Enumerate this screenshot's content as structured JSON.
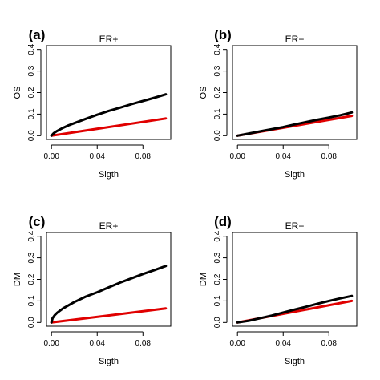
{
  "chart_data": [
    {
      "type": "line",
      "panel": "(a)",
      "title": "ER+",
      "xlabel": "Sigth",
      "ylabel": "OS",
      "xlim": [
        0,
        0.1
      ],
      "ylim": [
        0,
        0.4
      ],
      "xticks": [
        0.0,
        0.04,
        0.08
      ],
      "xtick_labels": [
        "0.00",
        "0.04",
        "0.08"
      ],
      "yticks": [
        0,
        0.1,
        0.2,
        0.3,
        0.4
      ],
      "ytick_labels": [
        "0.0",
        "0.1",
        "0.2",
        "0.3",
        "0.4"
      ],
      "series": [
        {
          "color": "#000000",
          "x": [
            0,
            0.002,
            0.005,
            0.01,
            0.015,
            0.02,
            0.03,
            0.04,
            0.05,
            0.06,
            0.07,
            0.08,
            0.09,
            0.1
          ],
          "y": [
            0,
            0.012,
            0.022,
            0.036,
            0.048,
            0.058,
            0.078,
            0.097,
            0.115,
            0.13,
            0.146,
            0.161,
            0.176,
            0.192
          ]
        },
        {
          "color": "#e00000",
          "x": [
            0,
            0.1
          ],
          "y": [
            0,
            0.08
          ]
        }
      ]
    },
    {
      "type": "line",
      "panel": "(b)",
      "title": "ER−",
      "xlabel": "Sigth",
      "ylabel": "OS",
      "xlim": [
        0,
        0.1
      ],
      "ylim": [
        0,
        0.4
      ],
      "xticks": [
        0.0,
        0.04,
        0.08
      ],
      "xtick_labels": [
        "0.00",
        "0.04",
        "0.08"
      ],
      "yticks": [
        0,
        0.1,
        0.2,
        0.3,
        0.4
      ],
      "ytick_labels": [
        "0.0",
        "0.1",
        "0.2",
        "0.3",
        "0.4"
      ],
      "series": [
        {
          "color": "#000000",
          "x": [
            0,
            0.01,
            0.02,
            0.03,
            0.04,
            0.05,
            0.06,
            0.07,
            0.08,
            0.09,
            0.1
          ],
          "y": [
            0,
            0.01,
            0.02,
            0.03,
            0.04,
            0.052,
            0.063,
            0.074,
            0.084,
            0.095,
            0.108
          ]
        },
        {
          "color": "#e00000",
          "x": [
            0,
            0.1
          ],
          "y": [
            0,
            0.092
          ]
        }
      ]
    },
    {
      "type": "line",
      "panel": "(c)",
      "title": "ER+",
      "xlabel": "Sigth",
      "ylabel": "DM",
      "xlim": [
        0,
        0.1
      ],
      "ylim": [
        0,
        0.4
      ],
      "xticks": [
        0.0,
        0.04,
        0.08
      ],
      "xtick_labels": [
        "0.00",
        "0.04",
        "0.08"
      ],
      "yticks": [
        0,
        0.1,
        0.2,
        0.3,
        0.4
      ],
      "ytick_labels": [
        "0.0",
        "0.1",
        "0.2",
        "0.3",
        "0.4"
      ],
      "series": [
        {
          "color": "#000000",
          "x": [
            0,
            0.001,
            0.003,
            0.005,
            0.01,
            0.015,
            0.02,
            0.03,
            0.04,
            0.05,
            0.06,
            0.07,
            0.08,
            0.09,
            0.1
          ],
          "y": [
            0,
            0.02,
            0.035,
            0.045,
            0.065,
            0.08,
            0.095,
            0.12,
            0.14,
            0.163,
            0.185,
            0.205,
            0.225,
            0.243,
            0.262
          ]
        },
        {
          "color": "#e00000",
          "x": [
            0,
            0.1
          ],
          "y": [
            0,
            0.065
          ]
        }
      ]
    },
    {
      "type": "line",
      "panel": "(d)",
      "title": "ER−",
      "xlabel": "Sigth",
      "ylabel": "DM",
      "xlim": [
        0,
        0.1
      ],
      "ylim": [
        0,
        0.4
      ],
      "xticks": [
        0.0,
        0.04,
        0.08
      ],
      "xtick_labels": [
        "0.00",
        "0.04",
        "0.08"
      ],
      "yticks": [
        0,
        0.1,
        0.2,
        0.3,
        0.4
      ],
      "ytick_labels": [
        "0.0",
        "0.1",
        "0.2",
        "0.3",
        "0.4"
      ],
      "series": [
        {
          "color": "#000000",
          "x": [
            0,
            0.01,
            0.02,
            0.03,
            0.04,
            0.05,
            0.06,
            0.07,
            0.08,
            0.09,
            0.1
          ],
          "y": [
            0,
            0.008,
            0.02,
            0.032,
            0.046,
            0.06,
            0.073,
            0.087,
            0.1,
            0.112,
            0.123
          ]
        },
        {
          "color": "#e00000",
          "x": [
            0,
            0.1
          ],
          "y": [
            0,
            0.1
          ]
        }
      ]
    }
  ]
}
